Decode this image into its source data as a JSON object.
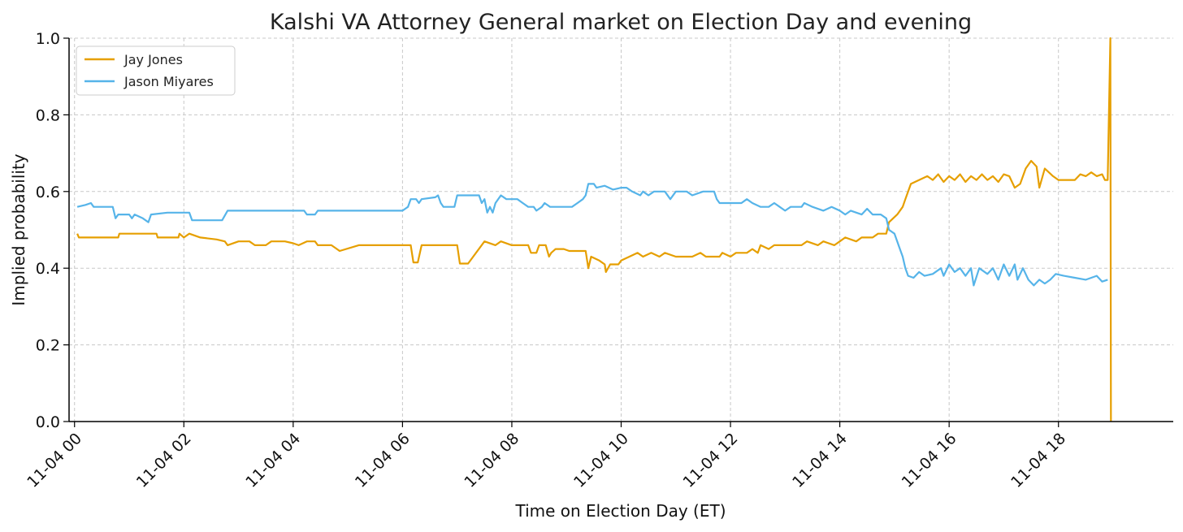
{
  "chart_data": {
    "type": "line",
    "title": "Kalshi VA Attorney General market on Election Day and evening",
    "xlabel": "Time on Election Day (ET)",
    "ylabel": "Implied probability",
    "xlim": [
      -0.1,
      20.1
    ],
    "ylim": [
      0.0,
      1.0
    ],
    "x_unit": "hour of 11-04",
    "x_ticks": [
      0,
      2,
      4,
      6,
      8,
      10,
      12,
      14,
      16,
      18
    ],
    "x_tick_labels": [
      "11-04 00",
      "11-04 02",
      "11-04 04",
      "11-04 06",
      "11-04 08",
      "11-04 10",
      "11-04 12",
      "11-04 14",
      "11-04 16",
      "11-04 18"
    ],
    "y_ticks": [
      0.0,
      0.2,
      0.4,
      0.6,
      0.8,
      1.0
    ],
    "y_tick_labels": [
      "0.0",
      "0.2",
      "0.4",
      "0.6",
      "0.8",
      "1.0"
    ],
    "grid": true,
    "legend": "top-left",
    "series": [
      {
        "name": "Jay Jones",
        "color": "#E69F00",
        "points": [
          [
            0.05,
            0.49
          ],
          [
            0.08,
            0.48
          ],
          [
            0.5,
            0.48
          ],
          [
            0.8,
            0.48
          ],
          [
            0.82,
            0.49
          ],
          [
            1.2,
            0.49
          ],
          [
            1.5,
            0.49
          ],
          [
            1.52,
            0.48
          ],
          [
            1.9,
            0.48
          ],
          [
            1.92,
            0.49
          ],
          [
            2.0,
            0.48
          ],
          [
            2.1,
            0.49
          ],
          [
            2.3,
            0.48
          ],
          [
            2.6,
            0.475
          ],
          [
            2.75,
            0.47
          ],
          [
            2.8,
            0.46
          ],
          [
            3.0,
            0.47
          ],
          [
            3.2,
            0.47
          ],
          [
            3.3,
            0.46
          ],
          [
            3.5,
            0.46
          ],
          [
            3.6,
            0.47
          ],
          [
            3.85,
            0.47
          ],
          [
            4.0,
            0.465
          ],
          [
            4.1,
            0.46
          ],
          [
            4.25,
            0.47
          ],
          [
            4.4,
            0.47
          ],
          [
            4.45,
            0.46
          ],
          [
            4.7,
            0.46
          ],
          [
            4.8,
            0.45
          ],
          [
            4.85,
            0.445
          ],
          [
            5.2,
            0.46
          ],
          [
            6.15,
            0.46
          ],
          [
            6.2,
            0.415
          ],
          [
            6.28,
            0.415
          ],
          [
            6.35,
            0.46
          ],
          [
            7.0,
            0.46
          ],
          [
            7.05,
            0.412
          ],
          [
            7.2,
            0.412
          ],
          [
            7.5,
            0.47
          ],
          [
            7.7,
            0.46
          ],
          [
            7.8,
            0.47
          ],
          [
            8.0,
            0.46
          ],
          [
            8.3,
            0.46
          ],
          [
            8.35,
            0.44
          ],
          [
            8.45,
            0.44
          ],
          [
            8.5,
            0.46
          ],
          [
            8.62,
            0.46
          ],
          [
            8.68,
            0.43
          ],
          [
            8.72,
            0.44
          ],
          [
            8.8,
            0.45
          ],
          [
            8.95,
            0.45
          ],
          [
            9.05,
            0.445
          ],
          [
            9.35,
            0.445
          ],
          [
            9.4,
            0.4
          ],
          [
            9.45,
            0.43
          ],
          [
            9.6,
            0.42
          ],
          [
            9.7,
            0.41
          ],
          [
            9.72,
            0.39
          ],
          [
            9.8,
            0.41
          ],
          [
            9.95,
            0.41
          ],
          [
            10.0,
            0.42
          ],
          [
            10.15,
            0.43
          ],
          [
            10.3,
            0.44
          ],
          [
            10.4,
            0.43
          ],
          [
            10.55,
            0.44
          ],
          [
            10.7,
            0.43
          ],
          [
            10.8,
            0.44
          ],
          [
            11.0,
            0.43
          ],
          [
            11.3,
            0.43
          ],
          [
            11.45,
            0.44
          ],
          [
            11.55,
            0.43
          ],
          [
            11.8,
            0.43
          ],
          [
            11.85,
            0.44
          ],
          [
            12.0,
            0.43
          ],
          [
            12.1,
            0.44
          ],
          [
            12.3,
            0.44
          ],
          [
            12.4,
            0.45
          ],
          [
            12.5,
            0.44
          ],
          [
            12.55,
            0.46
          ],
          [
            12.7,
            0.45
          ],
          [
            12.8,
            0.46
          ],
          [
            13.0,
            0.46
          ],
          [
            13.1,
            0.46
          ],
          [
            13.3,
            0.46
          ],
          [
            13.4,
            0.47
          ],
          [
            13.6,
            0.46
          ],
          [
            13.7,
            0.47
          ],
          [
            13.9,
            0.46
          ],
          [
            14.0,
            0.47
          ],
          [
            14.1,
            0.48
          ],
          [
            14.3,
            0.47
          ],
          [
            14.4,
            0.48
          ],
          [
            14.6,
            0.48
          ],
          [
            14.7,
            0.49
          ],
          [
            14.85,
            0.49
          ],
          [
            14.9,
            0.52
          ],
          [
            15.05,
            0.54
          ],
          [
            15.15,
            0.56
          ],
          [
            15.2,
            0.58
          ],
          [
            15.25,
            0.6
          ],
          [
            15.3,
            0.62
          ],
          [
            15.45,
            0.63
          ],
          [
            15.6,
            0.64
          ],
          [
            15.7,
            0.63
          ],
          [
            15.8,
            0.645
          ],
          [
            15.9,
            0.625
          ],
          [
            16.0,
            0.64
          ],
          [
            16.1,
            0.63
          ],
          [
            16.2,
            0.645
          ],
          [
            16.3,
            0.625
          ],
          [
            16.4,
            0.64
          ],
          [
            16.5,
            0.63
          ],
          [
            16.6,
            0.645
          ],
          [
            16.7,
            0.63
          ],
          [
            16.8,
            0.64
          ],
          [
            16.9,
            0.625
          ],
          [
            17.0,
            0.645
          ],
          [
            17.1,
            0.64
          ],
          [
            17.2,
            0.61
          ],
          [
            17.3,
            0.62
          ],
          [
            17.4,
            0.66
          ],
          [
            17.5,
            0.68
          ],
          [
            17.6,
            0.665
          ],
          [
            17.65,
            0.61
          ],
          [
            17.75,
            0.66
          ],
          [
            17.9,
            0.64
          ],
          [
            18.0,
            0.63
          ],
          [
            18.3,
            0.63
          ],
          [
            18.4,
            0.645
          ],
          [
            18.5,
            0.64
          ],
          [
            18.6,
            0.65
          ],
          [
            18.7,
            0.64
          ],
          [
            18.8,
            0.645
          ],
          [
            18.85,
            0.63
          ],
          [
            18.9,
            0.63
          ],
          [
            18.95,
            1.0
          ],
          [
            18.96,
            0.0
          ]
        ]
      },
      {
        "name": "Jason Miyares",
        "color": "#56B4E9",
        "points": [
          [
            0.05,
            0.56
          ],
          [
            0.2,
            0.565
          ],
          [
            0.3,
            0.57
          ],
          [
            0.35,
            0.56
          ],
          [
            0.7,
            0.56
          ],
          [
            0.75,
            0.53
          ],
          [
            0.8,
            0.54
          ],
          [
            1.0,
            0.54
          ],
          [
            1.05,
            0.53
          ],
          [
            1.1,
            0.54
          ],
          [
            1.25,
            0.53
          ],
          [
            1.35,
            0.52
          ],
          [
            1.4,
            0.54
          ],
          [
            1.7,
            0.545
          ],
          [
            2.1,
            0.545
          ],
          [
            2.15,
            0.525
          ],
          [
            2.7,
            0.525
          ],
          [
            2.8,
            0.55
          ],
          [
            3.0,
            0.55
          ],
          [
            3.3,
            0.55
          ],
          [
            3.4,
            0.55
          ],
          [
            3.8,
            0.55
          ],
          [
            4.2,
            0.55
          ],
          [
            4.25,
            0.54
          ],
          [
            4.4,
            0.54
          ],
          [
            4.45,
            0.55
          ],
          [
            6.0,
            0.55
          ],
          [
            6.1,
            0.56
          ],
          [
            6.15,
            0.58
          ],
          [
            6.25,
            0.58
          ],
          [
            6.3,
            0.57
          ],
          [
            6.35,
            0.58
          ],
          [
            6.6,
            0.585
          ],
          [
            6.65,
            0.59
          ],
          [
            6.7,
            0.57
          ],
          [
            6.75,
            0.56
          ],
          [
            6.95,
            0.56
          ],
          [
            7.0,
            0.59
          ],
          [
            7.4,
            0.59
          ],
          [
            7.45,
            0.57
          ],
          [
            7.5,
            0.58
          ],
          [
            7.55,
            0.545
          ],
          [
            7.6,
            0.56
          ],
          [
            7.65,
            0.545
          ],
          [
            7.7,
            0.57
          ],
          [
            7.8,
            0.59
          ],
          [
            7.9,
            0.58
          ],
          [
            8.1,
            0.58
          ],
          [
            8.2,
            0.57
          ],
          [
            8.3,
            0.56
          ],
          [
            8.4,
            0.56
          ],
          [
            8.45,
            0.55
          ],
          [
            8.55,
            0.56
          ],
          [
            8.6,
            0.57
          ],
          [
            8.7,
            0.56
          ],
          [
            8.9,
            0.56
          ],
          [
            9.1,
            0.56
          ],
          [
            9.2,
            0.57
          ],
          [
            9.3,
            0.58
          ],
          [
            9.35,
            0.59
          ],
          [
            9.4,
            0.62
          ],
          [
            9.5,
            0.62
          ],
          [
            9.55,
            0.61
          ],
          [
            9.7,
            0.615
          ],
          [
            9.85,
            0.605
          ],
          [
            10.0,
            0.61
          ],
          [
            10.1,
            0.61
          ],
          [
            10.2,
            0.6
          ],
          [
            10.35,
            0.59
          ],
          [
            10.4,
            0.6
          ],
          [
            10.5,
            0.59
          ],
          [
            10.6,
            0.6
          ],
          [
            10.8,
            0.6
          ],
          [
            10.9,
            0.58
          ],
          [
            11.0,
            0.6
          ],
          [
            11.2,
            0.6
          ],
          [
            11.3,
            0.59
          ],
          [
            11.5,
            0.6
          ],
          [
            11.7,
            0.6
          ],
          [
            11.75,
            0.58
          ],
          [
            11.8,
            0.57
          ],
          [
            12.0,
            0.57
          ],
          [
            12.2,
            0.57
          ],
          [
            12.3,
            0.58
          ],
          [
            12.4,
            0.57
          ],
          [
            12.55,
            0.56
          ],
          [
            12.7,
            0.56
          ],
          [
            12.8,
            0.57
          ],
          [
            12.9,
            0.56
          ],
          [
            13.0,
            0.55
          ],
          [
            13.1,
            0.56
          ],
          [
            13.3,
            0.56
          ],
          [
            13.35,
            0.57
          ],
          [
            13.5,
            0.56
          ],
          [
            13.7,
            0.55
          ],
          [
            13.85,
            0.56
          ],
          [
            14.0,
            0.55
          ],
          [
            14.1,
            0.54
          ],
          [
            14.2,
            0.55
          ],
          [
            14.4,
            0.54
          ],
          [
            14.5,
            0.555
          ],
          [
            14.6,
            0.54
          ],
          [
            14.75,
            0.54
          ],
          [
            14.85,
            0.53
          ],
          [
            14.9,
            0.5
          ],
          [
            15.0,
            0.49
          ],
          [
            15.1,
            0.45
          ],
          [
            15.15,
            0.43
          ],
          [
            15.2,
            0.4
          ],
          [
            15.25,
            0.38
          ],
          [
            15.35,
            0.375
          ],
          [
            15.45,
            0.39
          ],
          [
            15.55,
            0.38
          ],
          [
            15.7,
            0.385
          ],
          [
            15.85,
            0.4
          ],
          [
            15.9,
            0.38
          ],
          [
            16.0,
            0.41
          ],
          [
            16.1,
            0.39
          ],
          [
            16.2,
            0.4
          ],
          [
            16.3,
            0.38
          ],
          [
            16.4,
            0.4
          ],
          [
            16.45,
            0.355
          ],
          [
            16.55,
            0.4
          ],
          [
            16.7,
            0.385
          ],
          [
            16.8,
            0.4
          ],
          [
            16.9,
            0.37
          ],
          [
            17.0,
            0.41
          ],
          [
            17.1,
            0.38
          ],
          [
            17.2,
            0.41
          ],
          [
            17.25,
            0.37
          ],
          [
            17.35,
            0.4
          ],
          [
            17.45,
            0.37
          ],
          [
            17.55,
            0.355
          ],
          [
            17.65,
            0.37
          ],
          [
            17.75,
            0.36
          ],
          [
            17.85,
            0.37
          ],
          [
            17.95,
            0.385
          ],
          [
            18.1,
            0.38
          ],
          [
            18.3,
            0.375
          ],
          [
            18.5,
            0.37
          ],
          [
            18.7,
            0.38
          ],
          [
            18.8,
            0.365
          ],
          [
            18.9,
            0.37
          ]
        ]
      }
    ]
  }
}
